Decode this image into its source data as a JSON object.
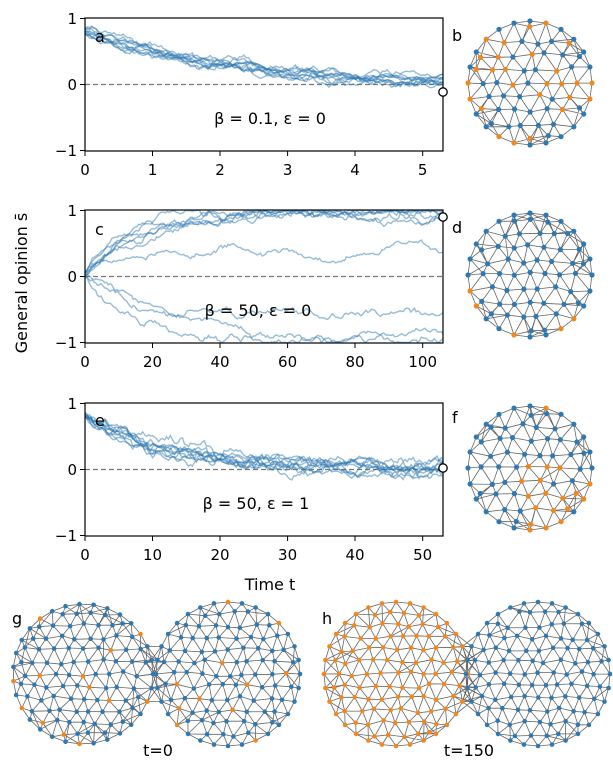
{
  "figure": {
    "ylabel": "General opinion s̄",
    "xlabel": "Time t",
    "colors": {
      "blue": "#2f79b2",
      "orange": "#f0881e",
      "edge": "#666666",
      "ref": "#777777"
    }
  },
  "chart_data": [
    {
      "id": "a",
      "type": "line",
      "panel_label": "a",
      "annotation": "β = 0.1, ε = 0",
      "xlim": [
        0,
        5.3
      ],
      "ylim": [
        -1,
        1
      ],
      "xticks": [
        "0",
        "1",
        "2",
        "3",
        "4",
        "5"
      ],
      "yticks": [
        "−1",
        "0",
        "1"
      ],
      "reference_line_y": 0,
      "end_marker": {
        "x": 5.3,
        "y": -0.12
      },
      "n_series": 10,
      "description_trend": "all runs start near 0.8 and decay toward 0"
    },
    {
      "id": "c",
      "type": "line",
      "panel_label": "c",
      "annotation": "β = 50, ε = 0",
      "xlim": [
        0,
        106
      ],
      "ylim": [
        -1,
        1
      ],
      "xticks": [
        "0",
        "20",
        "40",
        "60",
        "80",
        "100"
      ],
      "yticks": [
        "−1",
        "0",
        "1"
      ],
      "reference_line_y": 0,
      "end_marker": {
        "x": 106,
        "y": 0.9
      },
      "n_series": 10,
      "description_trend": "runs polarize toward +1 or −1"
    },
    {
      "id": "e",
      "type": "line",
      "panel_label": "e",
      "annotation": "β = 50, ε = 1",
      "xlim": [
        0,
        53
      ],
      "ylim": [
        -1,
        1
      ],
      "xticks": [
        "0",
        "10",
        "20",
        "30",
        "40",
        "50"
      ],
      "yticks": [
        "−1",
        "0",
        "1"
      ],
      "reference_line_y": 0,
      "end_marker": {
        "x": 53,
        "y": 0.03
      },
      "n_series": 10,
      "description_trend": "runs start near 0.8 and decay toward 0"
    }
  ],
  "networks": {
    "b": {
      "label": "b",
      "orange_fraction": 0.5
    },
    "d": {
      "label": "d",
      "orange_fraction": 0.04
    },
    "f": {
      "label": "f",
      "orange_fraction": 0.35
    },
    "g": {
      "label": "g",
      "caption": "t=0"
    },
    "h": {
      "label": "h",
      "caption": "t=150"
    }
  }
}
